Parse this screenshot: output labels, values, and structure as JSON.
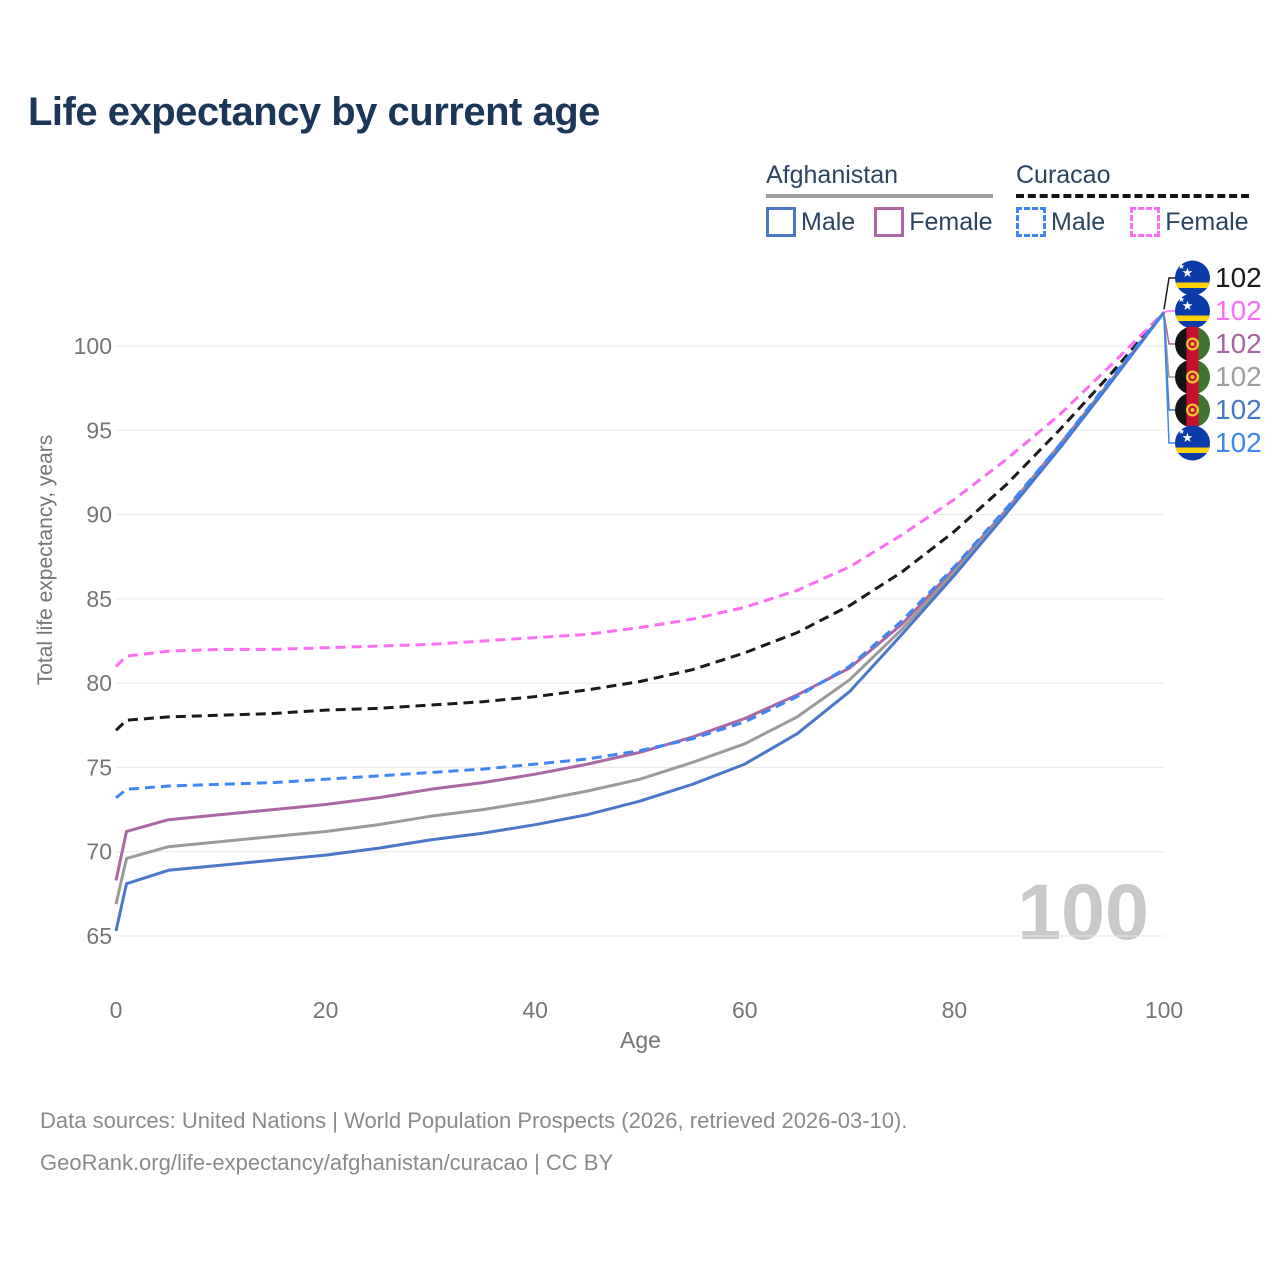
{
  "title": "Life expectancy by current age",
  "watermark_age": "100",
  "legend": {
    "groups": [
      {
        "name": "Afghanistan",
        "line_style": "solid",
        "underline_color": "#9e9e9e",
        "items": [
          {
            "label": "Male",
            "color": "#4b77c9",
            "dashed": false
          },
          {
            "label": "Female",
            "color": "#ab67a4",
            "dashed": false
          }
        ]
      },
      {
        "name": "Curacao",
        "line_style": "dashed",
        "underline_color": "#141414",
        "items": [
          {
            "label": "Male",
            "color": "#3f86f2",
            "dashed": true
          },
          {
            "label": "Female",
            "color": "#fa6ff0",
            "dashed": true
          }
        ]
      }
    ]
  },
  "axes": {
    "x": {
      "label": "Age",
      "min": 0,
      "max": 100,
      "ticks": [
        "0",
        "20",
        "40",
        "60",
        "80",
        "100"
      ]
    },
    "y": {
      "label": "Total life expectancy, years",
      "min": 65,
      "max": 100,
      "ticks": [
        "65",
        "70",
        "75",
        "80",
        "85",
        "90",
        "95",
        "100"
      ]
    }
  },
  "chart_data": {
    "type": "line",
    "title": "Life expectancy by current age",
    "xlabel": "Age",
    "ylabel": "Total life expectancy, years",
    "xlim": [
      0,
      100
    ],
    "ylim": [
      65,
      100
    ],
    "grid": "horizontal",
    "x": [
      0,
      1,
      5,
      10,
      15,
      20,
      25,
      30,
      35,
      40,
      45,
      50,
      55,
      60,
      65,
      70,
      75,
      80,
      85,
      90,
      95,
      100
    ],
    "series": [
      {
        "name": "Curacao (both sexes)",
        "country": "Curacao",
        "sex": "Both",
        "color": "#1a1a1a",
        "label_color": "#1a1a1a",
        "dashed": true,
        "flag": "curacao",
        "end_label": "102",
        "end_label_row": 0,
        "values": [
          77.2,
          77.8,
          78.0,
          78.1,
          78.2,
          78.4,
          78.5,
          78.7,
          78.9,
          79.2,
          79.6,
          80.1,
          80.8,
          81.8,
          83.0,
          84.6,
          86.6,
          89.0,
          91.8,
          95.0,
          98.4,
          102
        ]
      },
      {
        "name": "Curacao Female",
        "country": "Curacao",
        "sex": "Female",
        "color": "#fa6ff0",
        "label_color": "#fa6ff0",
        "dashed": true,
        "flag": "curacao",
        "end_label": "102",
        "end_label_row": 1,
        "values": [
          81.0,
          81.6,
          81.9,
          82.0,
          82.0,
          82.1,
          82.2,
          82.3,
          82.5,
          82.7,
          82.9,
          83.3,
          83.8,
          84.5,
          85.5,
          86.9,
          88.8,
          90.9,
          93.3,
          95.9,
          98.9,
          102
        ]
      },
      {
        "name": "Afghanistan Female",
        "country": "Afghanistan",
        "sex": "Female",
        "color": "#ab67a4",
        "label_color": "#a4679f",
        "dashed": false,
        "flag": "afghanistan",
        "end_label": "102",
        "end_label_row": 2,
        "values": [
          68.3,
          71.2,
          71.9,
          72.2,
          72.5,
          72.8,
          73.2,
          73.7,
          74.1,
          74.6,
          75.2,
          75.9,
          76.8,
          77.9,
          79.3,
          80.9,
          83.5,
          86.8,
          90.3,
          94.1,
          98.0,
          102
        ]
      },
      {
        "name": "Afghanistan (both sexes)",
        "country": "Afghanistan",
        "sex": "Both",
        "color": "#9a9a9a",
        "label_color": "#9e9e9e",
        "dashed": false,
        "flag": "afghanistan",
        "end_label": "102",
        "end_label_row": 3,
        "values": [
          66.9,
          69.6,
          70.3,
          70.6,
          70.9,
          71.2,
          71.6,
          72.1,
          72.5,
          73.0,
          73.6,
          74.3,
          75.3,
          76.4,
          78.0,
          80.2,
          83.2,
          86.6,
          90.2,
          94.0,
          98.0,
          102
        ]
      },
      {
        "name": "Afghanistan Male",
        "country": "Afghanistan",
        "sex": "Male",
        "color": "#4b77c9",
        "label_color": "#4b77c9",
        "dashed": false,
        "flag": "afghanistan",
        "end_label": "102",
        "end_label_row": 4,
        "values": [
          65.3,
          68.1,
          68.9,
          69.2,
          69.5,
          69.8,
          70.2,
          70.7,
          71.1,
          71.6,
          72.2,
          73.0,
          74.0,
          75.2,
          77.0,
          79.5,
          82.9,
          86.4,
          90.1,
          93.9,
          97.9,
          102
        ]
      },
      {
        "name": "Curacao Male",
        "country": "Curacao",
        "sex": "Male",
        "color": "#3f86f2",
        "label_color": "#3f86f2",
        "dashed": true,
        "flag": "curacao",
        "end_label": "102",
        "end_label_row": 5,
        "values": [
          73.2,
          73.7,
          73.9,
          74.0,
          74.1,
          74.3,
          74.5,
          74.7,
          74.9,
          75.2,
          75.5,
          76.0,
          76.7,
          77.7,
          79.2,
          81.0,
          83.7,
          86.9,
          90.4,
          94.1,
          98.1,
          102
        ]
      }
    ]
  },
  "footer": {
    "line1": "Data sources: United Nations | World Population Prospects (2026, retrieved 2026-03-10).",
    "line2": "GeoRank.org/life-expectancy/afghanistan/curacao | CC BY"
  }
}
